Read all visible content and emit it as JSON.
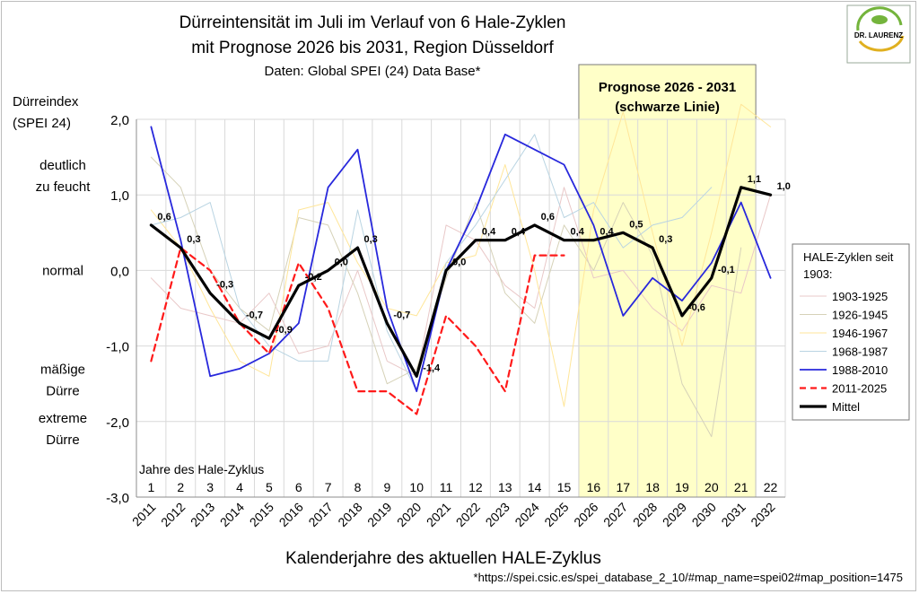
{
  "chart_data": {
    "type": "line",
    "title": [
      "Dürreintensität im Juli im Verlauf von 6 Hale-Zyklen",
      "mit Prognose 2026 bis 2031, Region Düsseldorf"
    ],
    "subtitle": "Daten: Global SPEI (24) Data Base*",
    "ylabel": [
      "Dürreindex",
      "(SPEI 24)"
    ],
    "xlabel": "Kalenderjahre des aktuellen HALE-Zyklus",
    "footnote": "*https://spei.csic.es/spei_database_2_10/#map_name=spei02#map_position=1475",
    "logo_text": "DR. LAURENZ",
    "ylim": [
      -3,
      2
    ],
    "y_ticks": [
      "-3,0",
      "-2,0",
      "-1,0",
      "0,0",
      "1,0",
      "2,0"
    ],
    "y_category_labels": [
      {
        "lines": [
          "deutlich",
          "zu feucht"
        ],
        "y": 1.25
      },
      {
        "lines": [
          "normal"
        ],
        "y": 0.0
      },
      {
        "lines": [
          "mäßige",
          "Dürre"
        ],
        "y": -1.45
      },
      {
        "lines": [
          "extreme",
          "Dürre"
        ],
        "y": -2.1
      }
    ],
    "cycle_years_label": "Jahre des Hale-Zyklus",
    "cycle_years": [
      "1",
      "2",
      "3",
      "4",
      "5",
      "6",
      "7",
      "8",
      "9",
      "10",
      "11",
      "12",
      "13",
      "14",
      "15",
      "16",
      "17",
      "18",
      "19",
      "20",
      "21",
      "22"
    ],
    "calendar_years": [
      "2011",
      "2012",
      "2013",
      "2014",
      "2015",
      "2016",
      "2017",
      "2018",
      "2019",
      "2020",
      "2021",
      "2022",
      "2023",
      "2024",
      "2025",
      "2026",
      "2027",
      "2028",
      "2029",
      "2030",
      "2031",
      "2032"
    ],
    "forecast": {
      "label_lines": [
        "Prognose 2026 - 2031",
        "(schwarze Linie)"
      ],
      "from_year": 16,
      "to_year": 21,
      "fill": "#ffffc8"
    },
    "legend_title": [
      "HALE-Zyklen seit",
      "1903:"
    ],
    "series": [
      {
        "name": "1903-1925",
        "color": "#e9c8c8",
        "width": 1,
        "dash": "",
        "values": [
          -0.1,
          -0.5,
          -0.6,
          -0.7,
          -0.3,
          -1.1,
          -1.0,
          0.0,
          -1.2,
          -1.4,
          0.6,
          0.4,
          -0.2,
          -0.5,
          1.1,
          -0.1,
          0.0,
          -0.5,
          -0.8,
          -0.2,
          -0.3,
          1.0
        ]
      },
      {
        "name": "1926-1945",
        "color": "#d6d2b8",
        "width": 1,
        "dash": "",
        "values": [
          1.5,
          1.1,
          0.0,
          -0.5,
          -0.8,
          0.7,
          0.6,
          -0.3,
          -1.5,
          -1.3,
          -0.1,
          0.9,
          -0.3,
          -0.7,
          0.6,
          0.0,
          0.9,
          0.2,
          -1.5,
          -2.2,
          0.3,
          null
        ]
      },
      {
        "name": "1946-1967",
        "color": "#ffe699",
        "width": 1,
        "dash": "",
        "values": [
          0.8,
          0.3,
          -0.5,
          -1.2,
          -1.4,
          0.8,
          0.9,
          0.1,
          -0.5,
          -0.6,
          0.1,
          0.2,
          1.4,
          0.0,
          -1.8,
          0.8,
          2.1,
          0.5,
          -1.0,
          0.5,
          2.2,
          1.9
        ]
      },
      {
        "name": "1968-1987",
        "color": "#b9d4e2",
        "width": 1,
        "dash": "",
        "values": [
          0.6,
          0.7,
          0.9,
          -0.5,
          -1.0,
          -1.2,
          -1.2,
          0.8,
          -0.8,
          -1.6,
          0.1,
          0.6,
          1.2,
          1.8,
          0.7,
          0.9,
          0.3,
          0.6,
          0.7,
          1.1,
          null,
          null
        ]
      },
      {
        "name": "1988-2010",
        "color": "#2828dc",
        "width": 1.8,
        "dash": "",
        "values": [
          1.9,
          0.4,
          -1.4,
          -1.3,
          -1.1,
          -0.7,
          1.1,
          1.6,
          -0.5,
          -1.6,
          0.0,
          0.8,
          1.8,
          1.6,
          1.4,
          0.6,
          -0.6,
          -0.1,
          -0.4,
          0.1,
          0.9,
          -0.1
        ]
      },
      {
        "name": "2011-2025",
        "color": "#ff1a1a",
        "width": 2.2,
        "dash": "7,5",
        "values": [
          -1.2,
          0.3,
          0.0,
          -0.7,
          -1.1,
          0.1,
          -0.5,
          -1.6,
          -1.6,
          -1.9,
          -0.6,
          -1.0,
          -1.6,
          0.2,
          0.2,
          null,
          null,
          null,
          null,
          null,
          null,
          null
        ]
      },
      {
        "name": "Mittel",
        "color": "#000000",
        "width": 3.2,
        "dash": "",
        "values": [
          0.6,
          0.3,
          -0.3,
          -0.7,
          -0.9,
          -0.2,
          0.0,
          0.3,
          -0.7,
          -1.4,
          0.0,
          0.4,
          0.4,
          0.6,
          0.4,
          0.4,
          0.5,
          0.3,
          -0.6,
          -0.1,
          1.1,
          1.0
        ],
        "labels": [
          "0,6",
          "0,3",
          "-0,3",
          "-0,7",
          "-0,9",
          "-0,2",
          "0,0",
          "0,3",
          "-0,7",
          "-1,4",
          "0,0",
          "0,4",
          "0,4",
          "0,6",
          "0,4",
          "0,4",
          "0,5",
          "0,3",
          "-0,6",
          "-0,1",
          "1,1",
          "1,0"
        ]
      }
    ],
    "grid": true,
    "legend_position": "right"
  }
}
